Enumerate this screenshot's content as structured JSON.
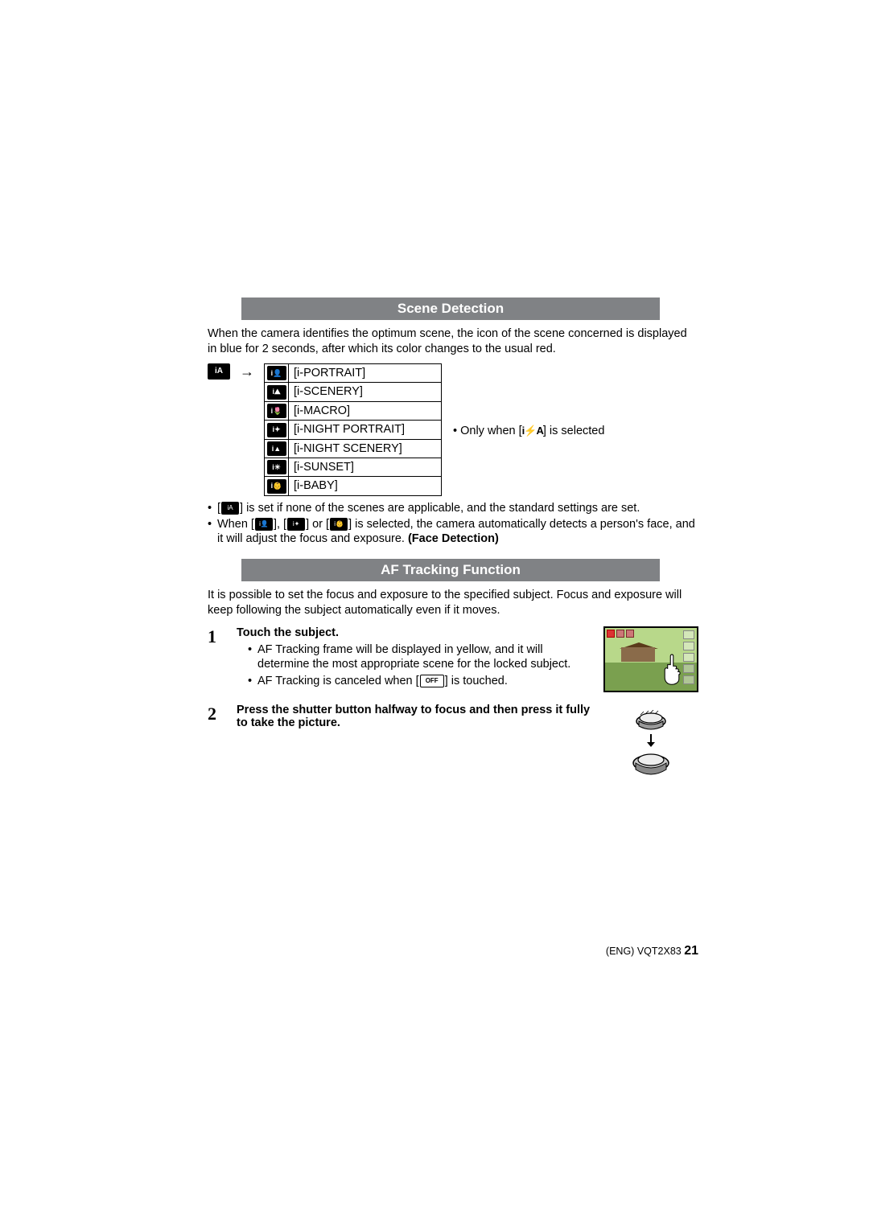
{
  "section1": {
    "title": "Scene Detection",
    "intro": "When the camera identifies the optimum scene, the icon of the scene concerned is displayed in blue for 2 seconds, after which its color changes to the usual red.",
    "ia_label": "iA",
    "arrow": "→",
    "scenes": [
      {
        "icon": "i👤",
        "label": "[i-PORTRAIT]"
      },
      {
        "icon": "i⛰",
        "label": "[i-SCENERY]"
      },
      {
        "icon": "i🌷",
        "label": "[i-MACRO]"
      },
      {
        "icon": "i✦",
        "label": "[i-NIGHT PORTRAIT]"
      },
      {
        "icon": "i▲",
        "label": "[i-NIGHT SCENERY]"
      },
      {
        "icon": "i☀",
        "label": "[i-SUNSET]"
      },
      {
        "icon": "i👶",
        "label": "[i-BABY]"
      }
    ],
    "note_right_pre": "• Only when [",
    "note_right_flash": "i⚡A",
    "note_right_post": "] is selected",
    "bullet1_pre": "[",
    "bullet1_icon": "iA",
    "bullet1_post": "] is set if none of the scenes are applicable, and the standard settings are set.",
    "bullet2_pre": "When [",
    "bullet2_mid1": "], [",
    "bullet2_mid2": "] or [",
    "bullet2_post": "] is selected, the camera automatically detects a person's face, and it will adjust the focus and exposure. ",
    "bullet2_bold": "(Face Detection)"
  },
  "section2": {
    "title": "AF Tracking Function",
    "intro": "It is possible to set the focus and exposure to the specified subject. Focus and exposure will keep following the subject automatically even if it moves.",
    "steps": [
      {
        "num": "1",
        "title": "Touch the subject.",
        "subs": [
          "AF Tracking frame will be displayed in yellow, and it will determine the most appropriate scene for the locked subject.",
          "AF Tracking is canceled when [__OFF__] is touched."
        ],
        "off_label": "OFF"
      },
      {
        "num": "2",
        "title": "Press the shutter button halfway to focus and then press it fully to take the picture."
      }
    ]
  },
  "footer": {
    "lang": "(ENG)",
    "code": "VQT2X83",
    "page": "21"
  },
  "colors": {
    "header_bg": "#808285",
    "text": "#000000"
  }
}
